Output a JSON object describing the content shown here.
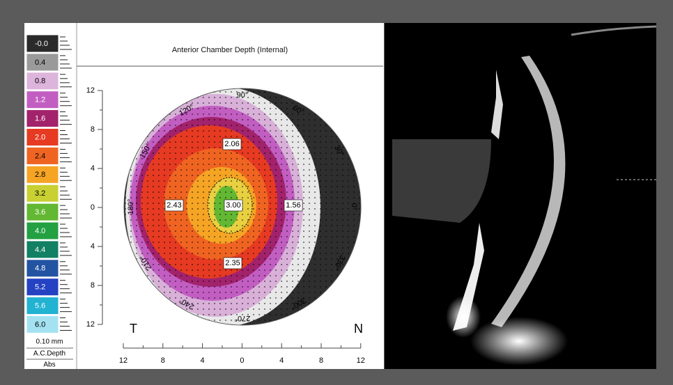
{
  "title": "Anterior Chamber Depth (Internal)",
  "scale": {
    "entries": [
      {
        "label": "-0.0",
        "color": "#2a2a2a",
        "text_color": "#ffffff"
      },
      {
        "label": "0.4",
        "color": "#9a9a9a",
        "text_color": "#000000"
      },
      {
        "label": "0.8",
        "color": "#dcb4dc",
        "text_color": "#000000"
      },
      {
        "label": "1.2",
        "color": "#c25ec2",
        "text_color": "#ffffff"
      },
      {
        "label": "1.6",
        "color": "#a2226c",
        "text_color": "#ffffff"
      },
      {
        "label": "2.0",
        "color": "#e63a22",
        "text_color": "#ffffff"
      },
      {
        "label": "2.4",
        "color": "#f06422",
        "text_color": "#000000"
      },
      {
        "label": "2.8",
        "color": "#f5a424",
        "text_color": "#000000"
      },
      {
        "label": "3.2",
        "color": "#c8d032",
        "text_color": "#000000"
      },
      {
        "label": "3.6",
        "color": "#62b832",
        "text_color": "#ffffff"
      },
      {
        "label": "4.0",
        "color": "#22a042",
        "text_color": "#ffffff"
      },
      {
        "label": "4.4",
        "color": "#128062",
        "text_color": "#ffffff"
      },
      {
        "label": "4.8",
        "color": "#2254a2",
        "text_color": "#ffffff"
      },
      {
        "label": "5.2",
        "color": "#2442c2",
        "text_color": "#ffffff"
      },
      {
        "label": "5.6",
        "color": "#22b2d2",
        "text_color": "#ffffff"
      },
      {
        "label": "6.0",
        "color": "#a4e2f2",
        "text_color": "#000000"
      }
    ],
    "unit": "0.10 mm",
    "quantity": "A.C.Depth",
    "mode": "Abs"
  },
  "map": {
    "y_axis_labels": [
      "12",
      "8",
      "4",
      "0",
      "4",
      "8",
      "12"
    ],
    "x_axis_labels": [
      "12",
      "8",
      "4",
      "0",
      "4",
      "8",
      "12"
    ],
    "angle_labels": [
      "90°",
      "60°",
      "30°",
      "0°",
      "330°",
      "300°",
      "270°",
      "240°",
      "210°",
      "180°",
      "150°",
      "120°"
    ],
    "values": [
      "2.06",
      "2.43",
      "3.00",
      "1.56",
      "2.35"
    ],
    "temporal": "T",
    "nasal": "N"
  }
}
